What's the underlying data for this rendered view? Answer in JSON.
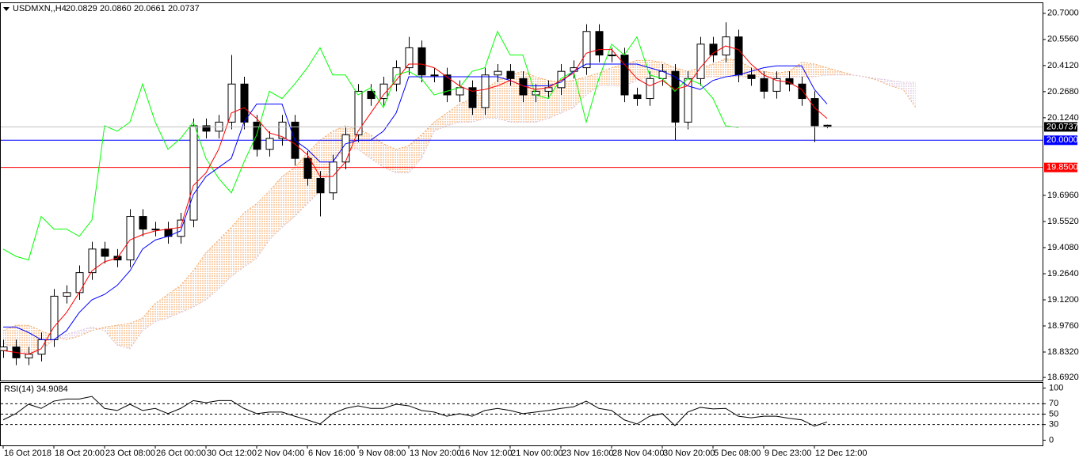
{
  "chart_data": {
    "type": "candlestick",
    "header": {
      "symbol": "USDMXN,,H4",
      "ohlc": [
        "20.0829",
        "20.0860",
        "20.0661",
        "20.0737"
      ]
    },
    "categories": [
      "16 Oct 2018",
      null,
      null,
      null,
      "18 Oct 20:00",
      null,
      null,
      null,
      "23 Oct 08:00",
      null,
      null,
      null,
      "26 Oct 00:00",
      null,
      null,
      null,
      "30 Oct 12:00",
      null,
      null,
      null,
      "2 Nov 04:00",
      null,
      null,
      null,
      "6 Nov 16:00",
      null,
      null,
      null,
      "9 Nov 08:00",
      null,
      null,
      null,
      "13 Nov 20:00",
      null,
      null,
      null,
      "16 Nov 12:00",
      null,
      null,
      null,
      "21 Nov 00:00",
      null,
      null,
      null,
      "23 Nov 16:00",
      null,
      null,
      null,
      "28 Nov 04:00",
      null,
      null,
      null,
      "30 Nov 20:00",
      null,
      null,
      null,
      "5 Dec 08:00",
      null,
      null,
      null,
      "9 Dec 23:00",
      null,
      null,
      null,
      "12 Dec 12:00",
      null,
      null,
      null,
      null,
      null,
      null,
      null,
      null
    ],
    "ylim": [
      18.675,
      20.756
    ],
    "yticks": [
      {
        "value": 20.7,
        "label": "20.7000"
      },
      {
        "value": 20.556,
        "label": "20.5560"
      },
      {
        "value": 20.412,
        "label": "20.4120"
      },
      {
        "value": 20.268,
        "label": "20.2680"
      },
      {
        "value": 20.124,
        "label": "20.1240"
      },
      {
        "value": 19.696,
        "label": "19.6960"
      },
      {
        "value": 19.552,
        "label": "19.5520"
      },
      {
        "value": 19.408,
        "label": "19.4080"
      },
      {
        "value": 19.264,
        "label": "19.2640"
      },
      {
        "value": 19.12,
        "label": "19.1200"
      },
      {
        "value": 18.976,
        "label": "18.9760"
      },
      {
        "value": 18.832,
        "label": "18.8320"
      },
      {
        "value": 18.692,
        "label": "18.6920"
      }
    ],
    "candles": {
      "up_color": "#ffffff",
      "down_color": "#000000",
      "open": [
        18.84,
        18.86,
        18.8,
        18.82,
        18.9,
        19.14,
        19.16,
        19.27,
        19.4,
        19.36,
        19.34,
        19.58,
        19.51,
        19.51,
        19.47,
        19.56,
        20.08,
        20.05,
        20.1,
        20.31,
        20.1,
        19.95,
        20.01,
        20.1,
        19.9,
        19.79,
        19.71,
        19.88,
        20.03,
        20.27,
        20.23,
        20.31,
        20.4,
        20.51,
        20.36,
        20.36,
        20.25,
        20.29,
        20.18,
        20.36,
        20.38,
        20.34,
        20.25,
        20.27,
        20.29,
        20.38,
        20.4,
        20.6,
        20.47,
        20.47,
        20.25,
        20.23,
        20.34,
        20.38,
        20.1,
        20.34,
        20.53,
        20.47,
        20.57,
        20.36,
        20.34,
        20.27,
        20.34,
        20.31,
        20.23,
        20.0829,
        null,
        null,
        null,
        null,
        null,
        null,
        null
      ],
      "high": [
        18.9,
        18.9,
        18.86,
        18.94,
        19.18,
        19.2,
        19.31,
        19.44,
        19.44,
        19.4,
        19.62,
        19.62,
        19.55,
        19.55,
        19.6,
        20.12,
        20.12,
        20.14,
        20.47,
        20.35,
        20.14,
        20.05,
        20.14,
        20.14,
        19.94,
        19.83,
        19.92,
        20.07,
        20.31,
        20.31,
        20.35,
        20.44,
        20.57,
        20.55,
        20.4,
        20.4,
        20.33,
        20.33,
        20.4,
        20.42,
        20.42,
        20.38,
        20.31,
        20.33,
        20.42,
        20.44,
        20.64,
        20.64,
        20.51,
        20.51,
        20.29,
        20.38,
        20.42,
        20.42,
        20.38,
        20.57,
        20.57,
        20.65,
        20.61,
        20.4,
        20.38,
        20.38,
        20.38,
        20.35,
        20.27,
        20.086,
        null,
        null,
        null,
        null,
        null,
        null,
        null
      ],
      "low": [
        18.8,
        18.76,
        18.76,
        18.78,
        18.86,
        19.1,
        19.12,
        19.23,
        19.32,
        19.3,
        19.3,
        19.47,
        19.47,
        19.43,
        19.43,
        19.52,
        20.01,
        20.01,
        20.06,
        20.06,
        19.91,
        19.91,
        19.97,
        19.86,
        19.75,
        19.58,
        19.67,
        19.84,
        19.99,
        20.19,
        20.19,
        20.27,
        20.36,
        20.32,
        20.32,
        20.21,
        20.21,
        20.14,
        20.14,
        20.32,
        20.3,
        20.21,
        20.21,
        20.23,
        20.25,
        20.34,
        20.36,
        20.43,
        20.43,
        20.21,
        20.19,
        20.19,
        20.3,
        20.0,
        20.06,
        20.3,
        20.43,
        20.43,
        20.32,
        20.3,
        20.23,
        20.23,
        20.27,
        20.19,
        19.99,
        20.0661,
        null,
        null,
        null,
        null,
        null,
        null,
        null
      ],
      "close": [
        18.86,
        18.8,
        18.82,
        18.9,
        19.14,
        19.16,
        19.27,
        19.4,
        19.36,
        19.34,
        19.58,
        19.51,
        19.51,
        19.47,
        19.56,
        20.08,
        20.05,
        20.1,
        20.31,
        20.1,
        19.95,
        20.01,
        20.1,
        19.9,
        19.79,
        19.71,
        19.88,
        20.03,
        20.27,
        20.23,
        20.31,
        20.4,
        20.51,
        20.36,
        20.36,
        20.25,
        20.29,
        20.18,
        20.36,
        20.38,
        20.34,
        20.25,
        20.27,
        20.29,
        20.38,
        20.4,
        20.6,
        20.47,
        20.47,
        20.25,
        20.23,
        20.34,
        20.38,
        20.1,
        20.34,
        20.53,
        20.47,
        20.57,
        20.36,
        20.34,
        20.27,
        20.34,
        20.31,
        20.23,
        20.08,
        20.0737,
        null,
        null,
        null,
        null,
        null,
        null,
        null
      ]
    },
    "tenkan": {
      "color": "#ff0000",
      "values": [
        18.84,
        18.83,
        18.82,
        18.85,
        18.97,
        19.05,
        19.16,
        19.28,
        19.33,
        19.35,
        19.45,
        19.48,
        19.5,
        19.51,
        19.52,
        19.75,
        19.82,
        19.95,
        20.15,
        20.18,
        20.12,
        20.04,
        20.02,
        19.98,
        19.92,
        19.8,
        19.8,
        19.88,
        20.05,
        20.15,
        20.25,
        20.33,
        20.42,
        20.42,
        20.4,
        20.35,
        20.3,
        20.27,
        20.28,
        20.3,
        20.33,
        20.3,
        20.28,
        20.29,
        20.33,
        20.37,
        20.48,
        20.5,
        20.5,
        20.42,
        20.34,
        20.3,
        20.33,
        20.28,
        20.3,
        20.4,
        20.48,
        20.52,
        20.5,
        20.42,
        20.36,
        20.33,
        20.32,
        20.28,
        20.18,
        20.12,
        null,
        null,
        null,
        null,
        null,
        null,
        null
      ]
    },
    "kijun": {
      "color": "#0000ff",
      "values": [
        18.97,
        18.97,
        18.94,
        18.9,
        18.9,
        18.95,
        19.05,
        19.12,
        19.15,
        19.2,
        19.28,
        19.4,
        19.45,
        19.47,
        19.5,
        19.7,
        19.8,
        19.85,
        19.9,
        20.1,
        20.2,
        20.2,
        20.2,
        20.0,
        19.95,
        19.88,
        19.88,
        19.98,
        20.0,
        20.0,
        20.05,
        20.15,
        20.35,
        20.35,
        20.35,
        20.35,
        20.35,
        20.35,
        20.35,
        20.35,
        20.33,
        20.3,
        20.3,
        20.3,
        20.32,
        20.38,
        20.42,
        20.42,
        20.42,
        20.42,
        20.42,
        20.4,
        20.38,
        20.35,
        20.3,
        20.28,
        20.33,
        20.35,
        20.36,
        20.38,
        20.4,
        20.41,
        20.41,
        20.41,
        20.28,
        20.2,
        null,
        null,
        null,
        null,
        null,
        null,
        null
      ]
    },
    "chikou": {
      "color": "#00ff00",
      "values": [
        19.4,
        19.36,
        19.34,
        19.58,
        19.51,
        19.51,
        19.47,
        19.56,
        20.08,
        20.05,
        20.1,
        20.31,
        20.1,
        19.95,
        20.01,
        20.1,
        19.9,
        19.79,
        19.71,
        19.88,
        20.03,
        20.27,
        20.23,
        20.31,
        20.4,
        20.51,
        20.36,
        20.36,
        20.25,
        20.29,
        20.18,
        20.36,
        20.38,
        20.34,
        20.25,
        20.27,
        20.29,
        20.38,
        20.4,
        20.6,
        20.47,
        20.47,
        20.25,
        20.23,
        20.34,
        20.38,
        20.1,
        20.34,
        20.53,
        20.47,
        20.57,
        20.36,
        20.34,
        20.27,
        20.34,
        20.31,
        20.23,
        20.08,
        20.07,
        null,
        null,
        null,
        null,
        null,
        null,
        null,
        null,
        null,
        null,
        null,
        null,
        null,
        null
      ]
    },
    "span_a": {
      "color": "#f4a460",
      "values": [
        18.95,
        18.98,
        18.98,
        18.95,
        18.92,
        18.9,
        18.92,
        18.95,
        18.97,
        18.98,
        18.99,
        19.02,
        19.1,
        19.15,
        19.2,
        19.28,
        19.38,
        19.45,
        19.52,
        19.6,
        19.65,
        19.72,
        19.8,
        19.85,
        19.93,
        20.0,
        20.05,
        20.08,
        20.06,
        20.03,
        19.98,
        19.95,
        19.97,
        20.03,
        20.1,
        20.15,
        20.2,
        20.23,
        20.28,
        20.33,
        20.36,
        20.38,
        20.35,
        20.33,
        20.32,
        20.33,
        20.35,
        20.37,
        20.4,
        20.42,
        20.44,
        20.44,
        20.43,
        20.4,
        20.38,
        20.4,
        20.42,
        20.45,
        20.44,
        20.4,
        20.38,
        20.37,
        20.38,
        20.43,
        20.42,
        20.4,
        20.38,
        20.36,
        20.35,
        20.33,
        20.3,
        20.28,
        20.18
      ]
    },
    "span_b": {
      "color": "#d8bfd8",
      "values": [
        18.88,
        18.85,
        18.82,
        18.84,
        18.9,
        18.93,
        18.95,
        18.97,
        18.95,
        18.87,
        18.85,
        18.95,
        19.0,
        19.02,
        19.05,
        19.08,
        19.12,
        19.18,
        19.25,
        19.3,
        19.35,
        19.45,
        19.52,
        19.58,
        19.65,
        19.72,
        19.88,
        19.95,
        19.95,
        19.9,
        19.85,
        19.82,
        19.82,
        19.9,
        20.05,
        20.08,
        20.1,
        20.1,
        20.12,
        20.12,
        20.1,
        20.1,
        20.1,
        20.12,
        20.15,
        20.18,
        20.25,
        20.3,
        20.3,
        20.3,
        20.33,
        20.35,
        20.35,
        20.35,
        20.35,
        20.35,
        20.35,
        20.35,
        20.35,
        20.35,
        20.35,
        20.35,
        20.35,
        20.35,
        20.35,
        20.36,
        20.36,
        20.36,
        20.35,
        20.34,
        20.33,
        20.32,
        20.32
      ]
    },
    "levels": [
      {
        "value": 20.0,
        "label": "20.0000",
        "color": "#0000ff"
      },
      {
        "value": 19.85,
        "label": "19.8500",
        "color": "#ff0000"
      }
    ],
    "rsi": {
      "label": "RSI(14) 34.9084",
      "ylim": [
        -10,
        110
      ],
      "yticks": [
        100,
        70,
        50,
        30,
        0
      ],
      "levels": [
        70,
        50,
        30
      ],
      "values": [
        39,
        51,
        69,
        61,
        75,
        79,
        79,
        84,
        61,
        57,
        69,
        57,
        61,
        51,
        61,
        76,
        72,
        76,
        76,
        61,
        51,
        54,
        54,
        46,
        39,
        31,
        51,
        61,
        66,
        61,
        61,
        69,
        66,
        57,
        54,
        46,
        51,
        46,
        57,
        61,
        57,
        51,
        54,
        57,
        61,
        64,
        75,
        61,
        57,
        39,
        31,
        46,
        51,
        28,
        54,
        63,
        60,
        61,
        46,
        43,
        46,
        46,
        42,
        39,
        27,
        34.9084,
        null,
        null,
        null,
        null,
        null,
        null,
        null
      ]
    }
  }
}
